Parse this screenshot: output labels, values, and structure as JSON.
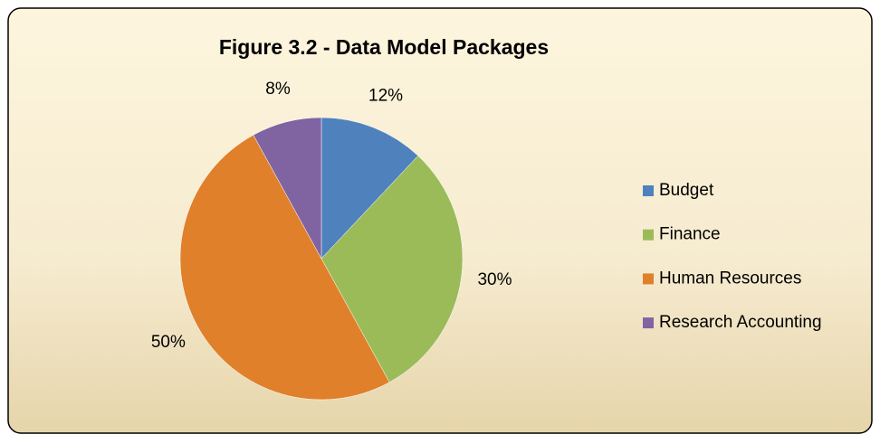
{
  "chart_data": {
    "type": "pie",
    "title": "Figure 3.2 - Data Model Packages",
    "categories": [
      "Budget",
      "Finance",
      "Human Resources",
      "Research Accounting"
    ],
    "values": [
      12,
      30,
      50,
      8
    ],
    "value_labels": [
      "12%",
      "30%",
      "50%",
      "8%"
    ],
    "colors": [
      "#4f81bd",
      "#9bbb59",
      "#e0802a",
      "#8064a2"
    ],
    "legend": "right"
  }
}
